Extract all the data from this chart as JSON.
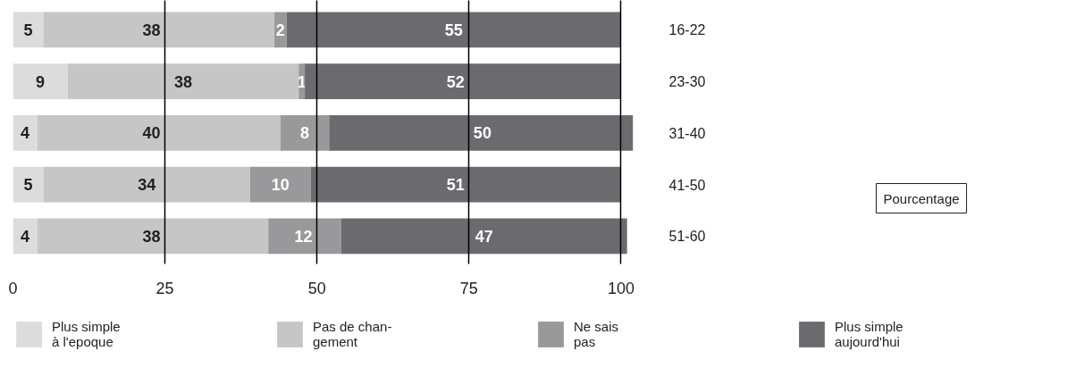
{
  "chart_data": {
    "type": "bar",
    "orientation": "horizontal",
    "stacked": true,
    "annotations": [
      "Pourcentage"
    ],
    "categories": [
      "16-22",
      "23-30",
      "31-40",
      "41-50",
      "51-60"
    ],
    "series": [
      {
        "name": "Plus simple\nà l'epoque",
        "color": "#dcdcdd",
        "values": [
          5,
          9,
          4,
          5,
          4
        ]
      },
      {
        "name": "Pas de chan-\ngement",
        "color": "#c6c6c7",
        "values": [
          38,
          38,
          40,
          34,
          38
        ]
      },
      {
        "name": "Ne sais\npas",
        "color": "#99999b",
        "values": [
          2,
          1,
          8,
          10,
          12
        ]
      },
      {
        "name": "Plus simple\naujourd'hui",
        "color": "#6b6b6f",
        "values": [
          55,
          52,
          50,
          51,
          47
        ]
      }
    ],
    "data_labels": true,
    "xlim": [
      0,
      102
    ],
    "xticks": [
      0,
      25,
      50,
      75,
      100
    ],
    "grid": "x",
    "legend": "bottom"
  }
}
